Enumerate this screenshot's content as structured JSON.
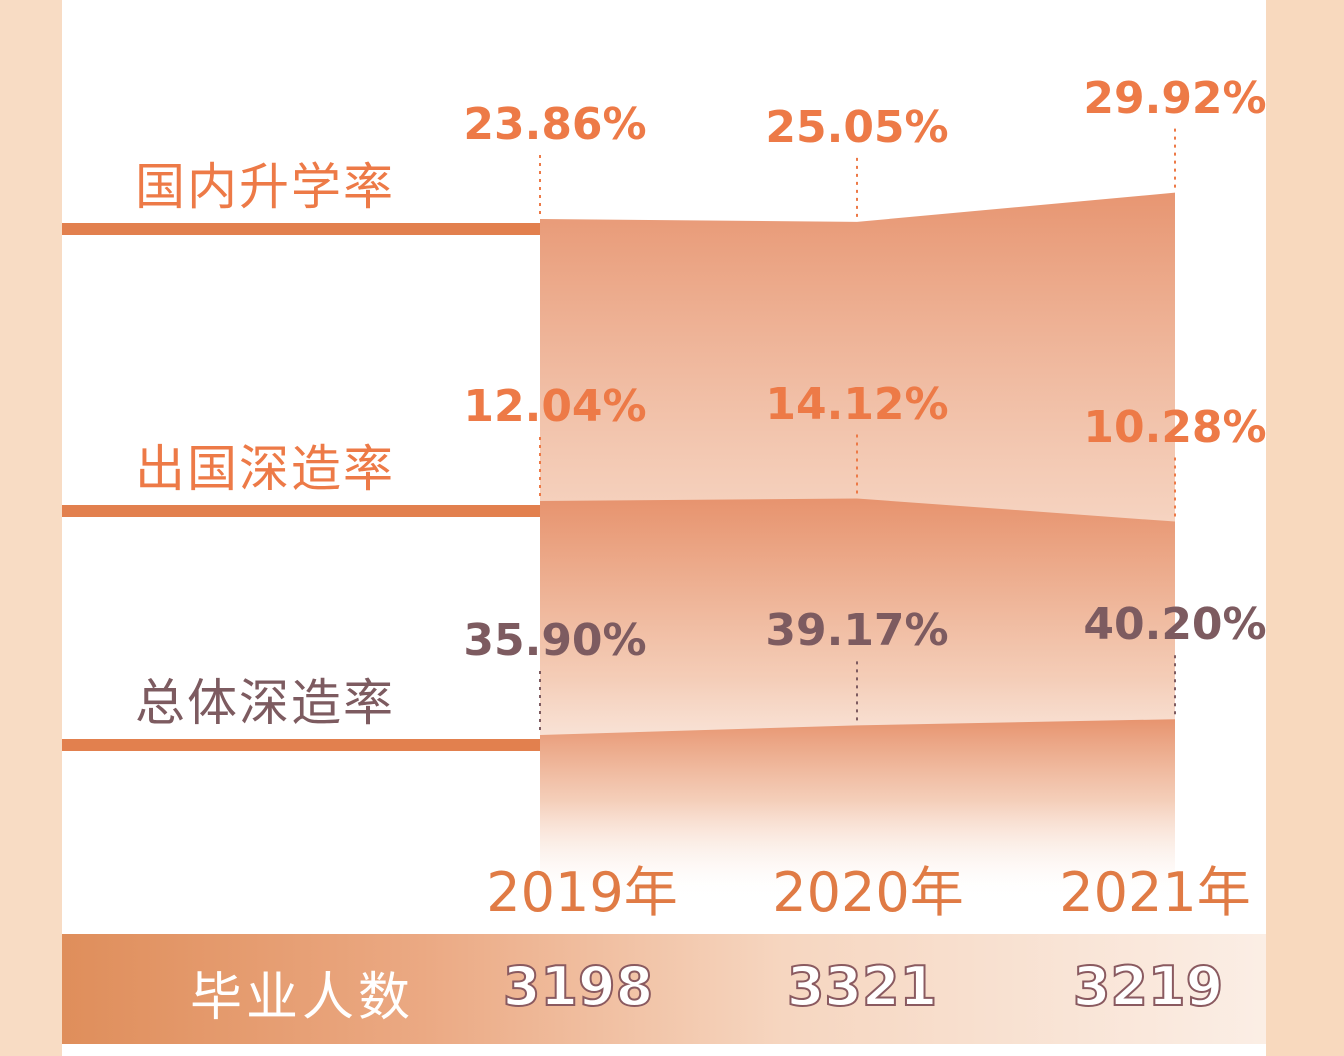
{
  "chart_data": {
    "type": "area",
    "x": [
      "2019年",
      "2020年",
      "2021年"
    ],
    "series": [
      {
        "name": "国内升学率",
        "values": [
          23.86,
          25.05,
          29.92
        ],
        "labels": [
          "23.86%",
          "25.05%",
          "29.92%"
        ],
        "color": "#ed7a47"
      },
      {
        "name": "出国深造率",
        "values": [
          12.04,
          14.12,
          10.28
        ],
        "labels": [
          "12.04%",
          "14.12%",
          "10.28%"
        ],
        "color": "#ed7a47"
      },
      {
        "name": "总体深造率",
        "values": [
          35.9,
          39.17,
          40.2
        ],
        "labels": [
          "35.90%",
          "39.17%",
          "40.20%"
        ],
        "color": "#7d5b60"
      }
    ],
    "footer": {
      "label": "毕业人数",
      "values": [
        "3198",
        "3321",
        "3219"
      ]
    }
  },
  "colors": {
    "accent": "#e07b45",
    "label_gray": "#7d5b60",
    "fill": "#e89a6f"
  }
}
